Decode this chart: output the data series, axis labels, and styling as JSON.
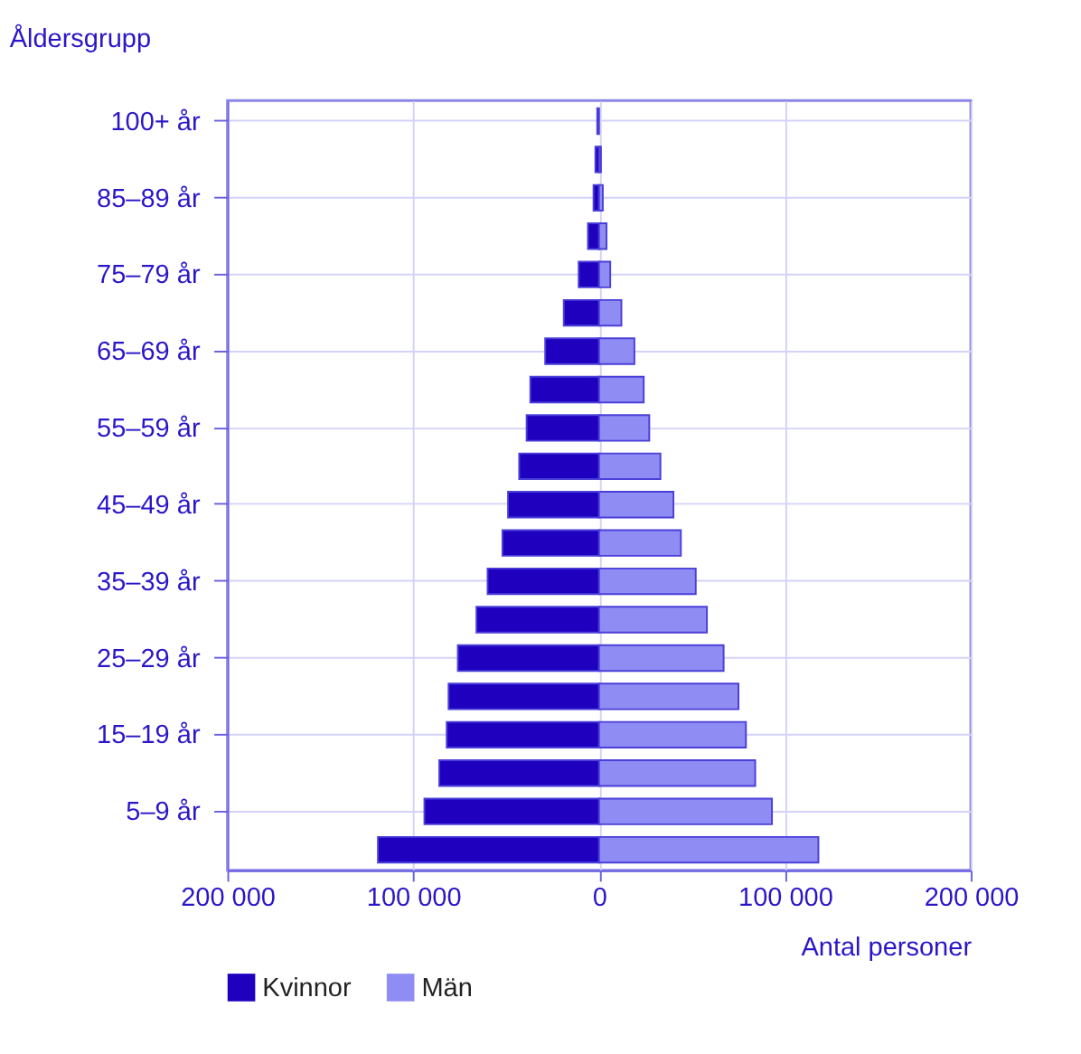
{
  "chart_data": {
    "type": "bar",
    "orientation": "horizontal",
    "stacked": true,
    "xlabel": "Antal personer",
    "ylabel": "Åldersgrupp",
    "categories": [
      "100+ år",
      null,
      "85–89 år",
      null,
      "75–79 år",
      null,
      "65–69 år",
      null,
      "55–59 år",
      null,
      "45–49 år",
      null,
      "35–39 år",
      null,
      "25–29 år",
      null,
      "15–19 år",
      null,
      "5–9 år",
      null
    ],
    "series": [
      {
        "name": "Kvinnor",
        "color": "#1f00bf",
        "values": [
          -1000,
          -2000,
          -3000,
          -6000,
          -11000,
          -19000,
          -29000,
          -37000,
          -39000,
          -43000,
          -49000,
          -52000,
          -60000,
          -66000,
          -76000,
          -81000,
          -82000,
          -86000,
          -94000,
          -119000
        ]
      },
      {
        "name": "Män",
        "color": "#8f8cf3",
        "values": [
          null,
          1000,
          2000,
          4000,
          6000,
          12000,
          19000,
          24000,
          27000,
          33000,
          40000,
          44000,
          52000,
          58000,
          67000,
          75000,
          79000,
          84000,
          93000,
          118000
        ]
      }
    ],
    "xlim": [
      -200000,
      200000
    ],
    "xticks": [
      {
        "value": -200000,
        "label": "200 000"
      },
      {
        "value": -100000,
        "label": "100 000"
      },
      0,
      {
        "value": 100000,
        "label": "100 000"
      },
      {
        "value": 200000,
        "label": "200 000"
      }
    ],
    "grid": true,
    "legend": "bottom"
  }
}
